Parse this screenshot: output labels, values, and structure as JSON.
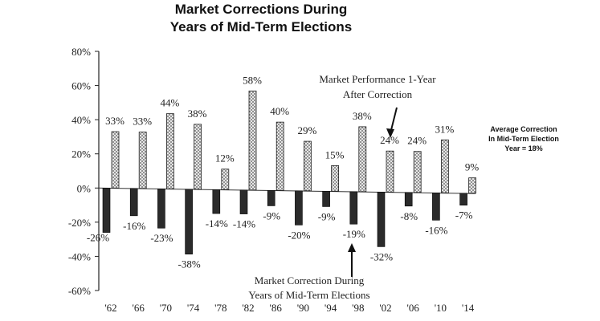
{
  "chart_data": {
    "type": "bar",
    "title_lines": [
      "Market Corrections During",
      "Years of Mid-Term Elections"
    ],
    "categories": [
      "'62",
      "'66",
      "'70",
      "'74",
      "'78",
      "'82",
      "'86",
      "'90",
      "'94",
      "'98",
      "'02",
      "'06",
      "'10",
      "'14"
    ],
    "series": [
      {
        "values": [
          -26,
          -16,
          -23,
          -38,
          -14,
          -14,
          -9,
          -20,
          -9,
          -19,
          -32,
          -8,
          -16,
          -7
        ],
        "labels": [
          "-26%",
          "-16%",
          "-23%",
          "-38%",
          "-14%",
          "-14%",
          "-9%",
          "-20%",
          "-9%",
          "-19%",
          "-32%",
          "-8%",
          "-16%",
          "-7%"
        ],
        "color": "#2b2b2b"
      },
      {
        "values": [
          33,
          33,
          44,
          38,
          12,
          58,
          40,
          29,
          15,
          38,
          24,
          24,
          31,
          9
        ],
        "labels": [
          "33%",
          "33%",
          "44%",
          "38%",
          "12%",
          "58%",
          "40%",
          "29%",
          "15%",
          "38%",
          "24%",
          "24%",
          "31%",
          "9%"
        ],
        "color": "#9a9a9a"
      }
    ],
    "yticks": [
      "80%",
      "60%",
      "40%",
      "20%",
      "0%",
      "-20%",
      "-40%",
      "-60%"
    ],
    "ylim": [
      -60,
      80
    ],
    "annotations": {
      "top_line1": "Market Performance 1-Year",
      "top_line2": "After Correction",
      "bottom_line1": "Market Correction During",
      "bottom_line2": "Years of Mid-Term Elections"
    },
    "side_note": [
      "Average Correction",
      "In Mid-Term Election",
      "Year = 18%"
    ],
    "grid": false,
    "legend": "none"
  }
}
